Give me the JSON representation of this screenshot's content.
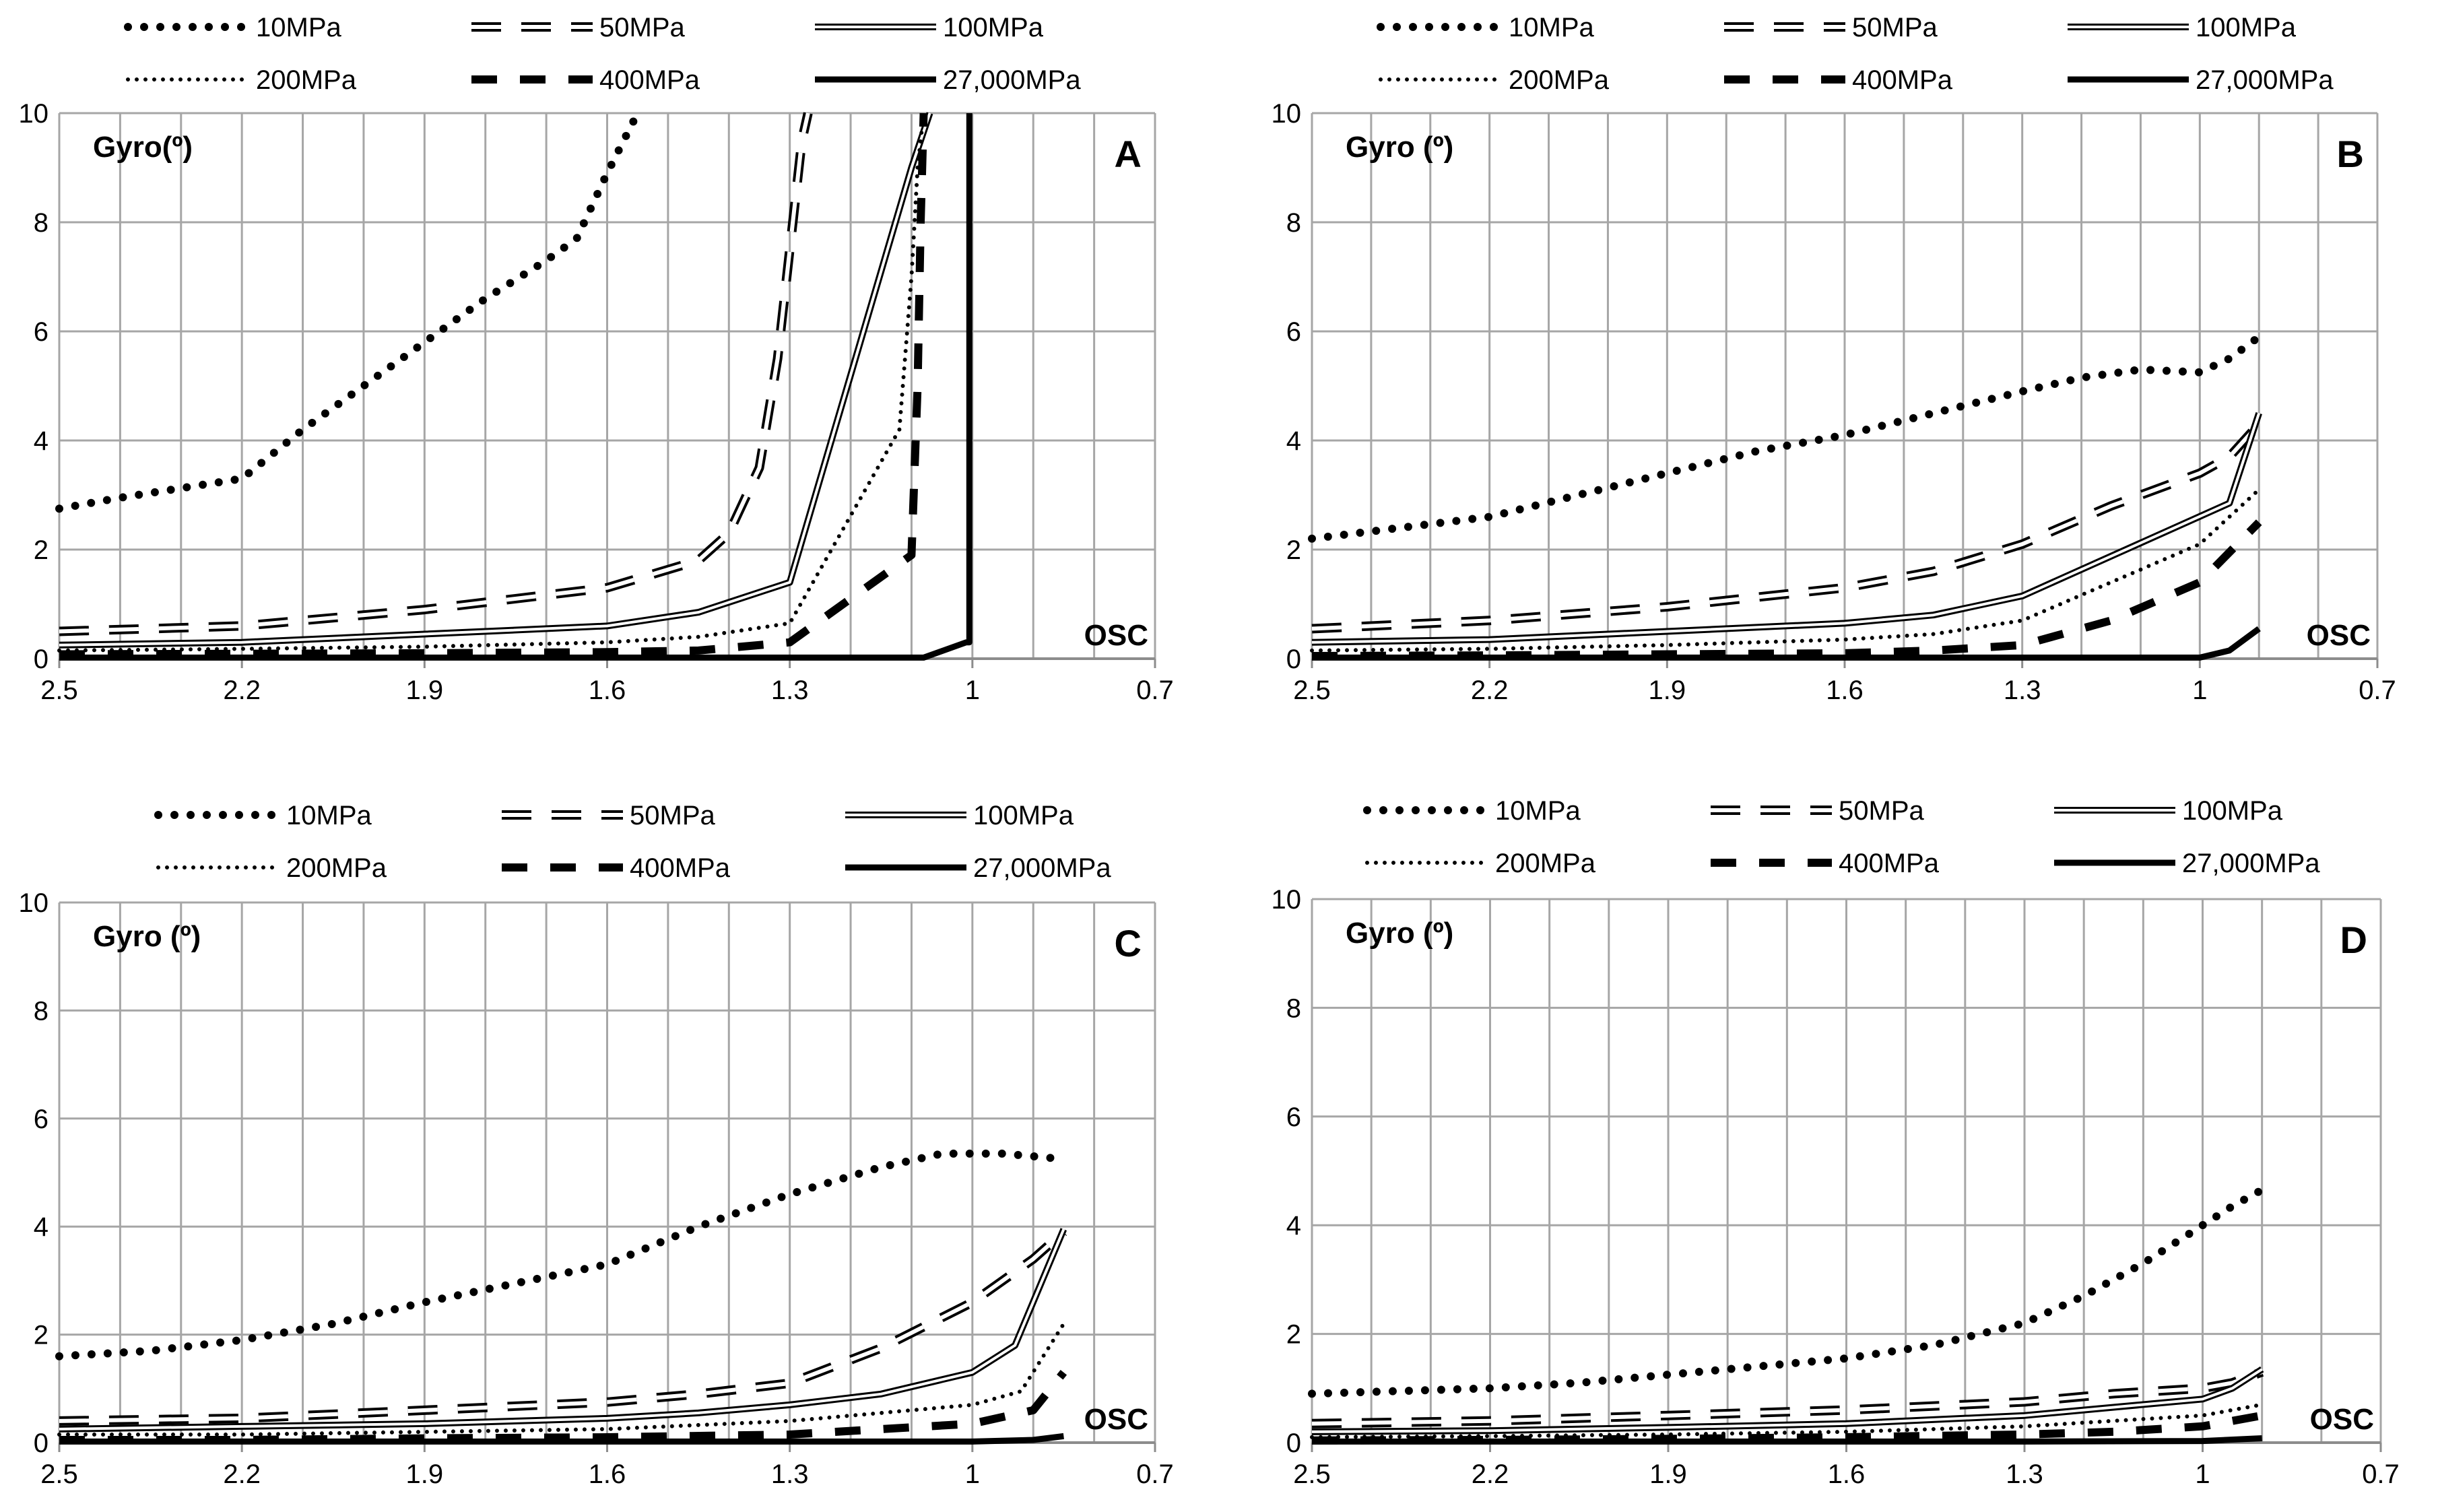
{
  "chart_data": [
    {
      "type": "line",
      "panel_label": "A",
      "y_annotation": "Gyro(º)",
      "x_annotation": "OSC",
      "xlim": [
        2.5,
        0.7
      ],
      "ylim": [
        0,
        10
      ],
      "x_ticks": [
        "2.5",
        "2.2",
        "1.9",
        "1.6",
        "1.3",
        "1",
        "0.7"
      ],
      "y_ticks": [
        "0",
        "2",
        "4",
        "6",
        "8",
        "10"
      ],
      "legend": [
        "10MPa",
        "50MPa",
        "100MPa",
        "200MPa",
        "400MPa",
        "27,000MPa"
      ],
      "series": [
        {
          "name": "10MPa",
          "style": "dot-heavy",
          "x": [
            2.5,
            2.4,
            2.2,
            2.1,
            2.0,
            1.9,
            1.8,
            1.7,
            1.65,
            1.6,
            1.55
          ],
          "y": [
            2.75,
            2.95,
            3.3,
            4.2,
            5.0,
            5.8,
            6.6,
            7.3,
            7.7,
            8.9,
            10.0
          ]
        },
        {
          "name": "50MPa",
          "style": "dash-double",
          "x": [
            2.5,
            2.2,
            1.9,
            1.6,
            1.45,
            1.4,
            1.35,
            1.32,
            1.3,
            1.28,
            1.27
          ],
          "y": [
            0.5,
            0.6,
            0.9,
            1.3,
            1.8,
            2.3,
            3.5,
            5.5,
            7.5,
            9.5,
            10.0
          ]
        },
        {
          "name": "100MPa",
          "style": "double",
          "x": [
            2.5,
            2.2,
            1.9,
            1.6,
            1.45,
            1.3,
            1.1,
            1.07
          ],
          "y": [
            0.25,
            0.3,
            0.45,
            0.6,
            0.85,
            1.4,
            9.0,
            10.0
          ]
        },
        {
          "name": "200MPa",
          "style": "dot-light",
          "x": [
            2.5,
            2.2,
            1.9,
            1.6,
            1.45,
            1.3,
            1.12,
            1.1,
            1.09,
            1.08
          ],
          "y": [
            0.15,
            0.18,
            0.22,
            0.3,
            0.4,
            0.65,
            4.2,
            7.0,
            9.0,
            10.0
          ]
        },
        {
          "name": "400MPa",
          "style": "dash-heavy",
          "x": [
            2.5,
            2.2,
            1.9,
            1.6,
            1.45,
            1.3,
            1.1,
            1.09,
            1.085,
            1.08
          ],
          "y": [
            0.08,
            0.09,
            0.1,
            0.12,
            0.15,
            0.3,
            1.9,
            5.0,
            8.0,
            10.0
          ]
        },
        {
          "name": "27,000MPa",
          "style": "solid-heavy",
          "x": [
            2.5,
            2.2,
            1.9,
            1.6,
            1.3,
            1.08,
            1.01,
            1.005,
            1.005
          ],
          "y": [
            0.02,
            0.02,
            0.02,
            0.02,
            0.02,
            0.02,
            0.3,
            0.3,
            10.0
          ]
        }
      ]
    },
    {
      "type": "line",
      "panel_label": "B",
      "y_annotation": "Gyro (º)",
      "x_annotation": "OSC",
      "xlim": [
        2.5,
        0.7
      ],
      "ylim": [
        0,
        10
      ],
      "x_ticks": [
        "2.5",
        "2.2",
        "1.9",
        "1.6",
        "1.3",
        "1",
        "0.7"
      ],
      "y_ticks": [
        "0",
        "2",
        "4",
        "6",
        "8",
        "10"
      ],
      "legend": [
        "10MPa",
        "50MPa",
        "100MPa",
        "200MPa",
        "400MPa",
        "27,000MPa"
      ],
      "series": [
        {
          "name": "10MPa",
          "style": "dot-heavy",
          "x": [
            2.5,
            2.35,
            2.2,
            2.05,
            1.9,
            1.75,
            1.6,
            1.45,
            1.3,
            1.2,
            1.1,
            1.0,
            0.95,
            0.9
          ],
          "y": [
            2.2,
            2.4,
            2.6,
            3.0,
            3.4,
            3.8,
            4.1,
            4.5,
            4.9,
            5.15,
            5.3,
            5.25,
            5.5,
            5.9
          ]
        },
        {
          "name": "50MPa",
          "style": "dash-double",
          "x": [
            2.5,
            2.2,
            1.9,
            1.6,
            1.45,
            1.3,
            1.15,
            1.0,
            0.95,
            0.9
          ],
          "y": [
            0.55,
            0.7,
            0.95,
            1.3,
            1.6,
            2.1,
            2.8,
            3.4,
            3.7,
            4.3
          ]
        },
        {
          "name": "100MPa",
          "style": "double",
          "x": [
            2.5,
            2.2,
            1.9,
            1.6,
            1.45,
            1.3,
            0.95,
            0.9
          ],
          "y": [
            0.3,
            0.35,
            0.5,
            0.65,
            0.8,
            1.15,
            2.85,
            4.5
          ]
        },
        {
          "name": "200MPa",
          "style": "dot-light",
          "x": [
            2.5,
            2.2,
            1.9,
            1.6,
            1.45,
            1.3,
            1.15,
            1.0,
            0.9
          ],
          "y": [
            0.15,
            0.18,
            0.25,
            0.35,
            0.45,
            0.7,
            1.4,
            2.1,
            3.1
          ]
        },
        {
          "name": "400MPa",
          "style": "dash-heavy",
          "x": [
            2.5,
            2.2,
            1.9,
            1.6,
            1.45,
            1.3,
            1.15,
            1.0,
            0.9
          ],
          "y": [
            0.05,
            0.06,
            0.08,
            0.1,
            0.15,
            0.25,
            0.7,
            1.4,
            2.5
          ]
        },
        {
          "name": "27,000MPa",
          "style": "solid-heavy",
          "x": [
            2.5,
            2.2,
            1.9,
            1.6,
            1.3,
            1.0,
            0.95,
            0.9
          ],
          "y": [
            0.02,
            0.02,
            0.02,
            0.02,
            0.02,
            0.02,
            0.15,
            0.55
          ]
        }
      ]
    },
    {
      "type": "line",
      "panel_label": "C",
      "y_annotation": "Gyro (º)",
      "x_annotation": "OSC",
      "xlim": [
        2.5,
        0.7
      ],
      "ylim": [
        0,
        10
      ],
      "x_ticks": [
        "2.5",
        "2.2",
        "1.9",
        "1.6",
        "1.3",
        "1",
        "0.7"
      ],
      "y_ticks": [
        "0",
        "2",
        "4",
        "6",
        "8",
        "10"
      ],
      "legend": [
        "10MPa",
        "50MPa",
        "100MPa",
        "200MPa",
        "400MPa",
        "27,000MPa"
      ],
      "series": [
        {
          "name": "10MPa",
          "style": "dot-heavy",
          "x": [
            2.5,
            2.35,
            2.2,
            2.05,
            1.9,
            1.75,
            1.6,
            1.45,
            1.3,
            1.15,
            1.05,
            0.95,
            0.9,
            0.85
          ],
          "y": [
            1.6,
            1.7,
            1.9,
            2.2,
            2.6,
            2.95,
            3.3,
            4.0,
            4.6,
            5.1,
            5.35,
            5.35,
            5.3,
            5.25
          ]
        },
        {
          "name": "50MPa",
          "style": "dash-double",
          "x": [
            2.5,
            2.2,
            1.9,
            1.6,
            1.45,
            1.3,
            1.15,
            1.0,
            0.9,
            0.85
          ],
          "y": [
            0.4,
            0.45,
            0.6,
            0.75,
            0.9,
            1.1,
            1.75,
            2.6,
            3.4,
            3.9
          ]
        },
        {
          "name": "100MPa",
          "style": "double",
          "x": [
            2.5,
            2.2,
            1.9,
            1.6,
            1.45,
            1.3,
            1.15,
            1.0,
            0.93,
            0.85
          ],
          "y": [
            0.25,
            0.3,
            0.35,
            0.45,
            0.55,
            0.7,
            0.9,
            1.3,
            1.8,
            3.95
          ]
        },
        {
          "name": "200MPa",
          "style": "dot-light",
          "x": [
            2.5,
            2.2,
            1.9,
            1.6,
            1.3,
            1.15,
            1.0,
            0.92,
            0.85
          ],
          "y": [
            0.15,
            0.15,
            0.2,
            0.25,
            0.4,
            0.55,
            0.7,
            0.95,
            2.2
          ]
        },
        {
          "name": "400MPa",
          "style": "dash-heavy",
          "x": [
            2.5,
            2.2,
            1.9,
            1.6,
            1.3,
            1.15,
            1.0,
            0.9,
            0.85
          ],
          "y": [
            0.05,
            0.05,
            0.08,
            0.1,
            0.15,
            0.25,
            0.35,
            0.6,
            1.3
          ]
        },
        {
          "name": "27,000MPa",
          "style": "solid-heavy",
          "x": [
            2.5,
            2.2,
            1.9,
            1.6,
            1.3,
            1.0,
            0.9,
            0.85
          ],
          "y": [
            0.02,
            0.02,
            0.02,
            0.02,
            0.02,
            0.02,
            0.05,
            0.12
          ]
        }
      ]
    },
    {
      "type": "line",
      "panel_label": "D",
      "y_annotation": "Gyro (º)",
      "x_annotation": "OSC",
      "xlim": [
        2.5,
        0.7
      ],
      "ylim": [
        0,
        10
      ],
      "x_ticks": [
        "2.5",
        "2.2",
        "1.9",
        "1.6",
        "1.3",
        "1",
        "0.7"
      ],
      "y_ticks": [
        "0",
        "2",
        "4",
        "6",
        "8",
        "10"
      ],
      "legend": [
        "10MPa",
        "50MPa",
        "100MPa",
        "200MPa",
        "400MPa",
        "27,000MPa"
      ],
      "series": [
        {
          "name": "10MPa",
          "style": "dot-heavy",
          "x": [
            2.5,
            2.35,
            2.2,
            2.05,
            1.9,
            1.75,
            1.6,
            1.45,
            1.3,
            1.2,
            1.1,
            1.0,
            0.95,
            0.9
          ],
          "y": [
            0.9,
            0.95,
            1.0,
            1.1,
            1.25,
            1.4,
            1.55,
            1.8,
            2.2,
            2.7,
            3.3,
            4.0,
            4.35,
            4.65
          ]
        },
        {
          "name": "50MPa",
          "style": "dash-double",
          "x": [
            2.5,
            2.2,
            1.9,
            1.6,
            1.3,
            1.15,
            1.0,
            0.95,
            0.9
          ],
          "y": [
            0.35,
            0.4,
            0.5,
            0.6,
            0.75,
            0.9,
            1.0,
            1.1,
            1.3
          ]
        },
        {
          "name": "100MPa",
          "style": "double",
          "x": [
            2.5,
            2.2,
            1.9,
            1.6,
            1.3,
            1.15,
            1.0,
            0.95,
            0.9
          ],
          "y": [
            0.2,
            0.22,
            0.28,
            0.35,
            0.5,
            0.65,
            0.8,
            1.0,
            1.35
          ]
        },
        {
          "name": "200MPa",
          "style": "dot-light",
          "x": [
            2.5,
            2.2,
            1.9,
            1.6,
            1.3,
            1.15,
            1.0,
            0.9
          ],
          "y": [
            0.1,
            0.12,
            0.15,
            0.2,
            0.3,
            0.4,
            0.5,
            0.7
          ]
        },
        {
          "name": "400MPa",
          "style": "dash-heavy",
          "x": [
            2.5,
            2.2,
            1.9,
            1.6,
            1.3,
            1.15,
            1.0,
            0.9
          ],
          "y": [
            0.04,
            0.05,
            0.07,
            0.1,
            0.15,
            0.2,
            0.3,
            0.5
          ]
        },
        {
          "name": "27,000MPa",
          "style": "solid-heavy",
          "x": [
            2.5,
            2.2,
            1.9,
            1.6,
            1.3,
            1.0,
            0.9
          ],
          "y": [
            0.02,
            0.02,
            0.02,
            0.02,
            0.02,
            0.03,
            0.08
          ]
        }
      ]
    }
  ]
}
